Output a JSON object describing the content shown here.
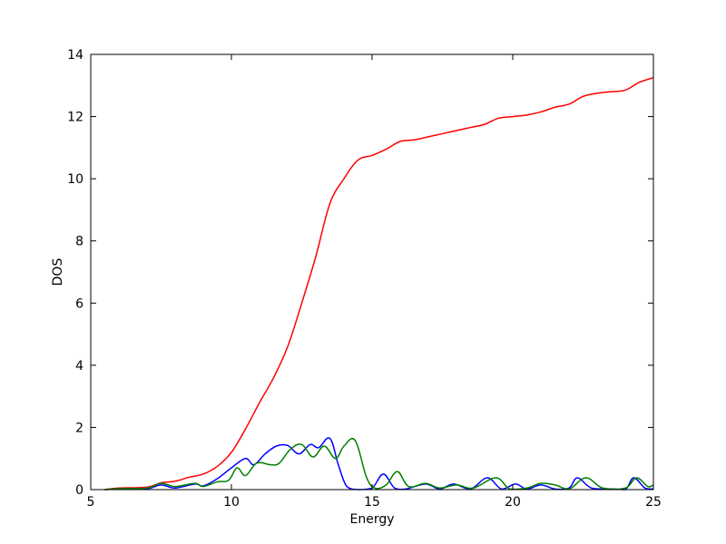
{
  "chart_data": {
    "type": "line",
    "title": "",
    "xlabel": "Energy",
    "ylabel": "DOS",
    "xlim": [
      5,
      25
    ],
    "ylim": [
      0,
      14
    ],
    "xticks": [
      5,
      10,
      15,
      20,
      25
    ],
    "yticks": [
      0,
      2,
      4,
      6,
      8,
      10,
      12,
      14
    ],
    "xtick_labels": [
      "5",
      "10",
      "15",
      "20",
      "25"
    ],
    "ytick_labels": [
      "0",
      "2",
      "4",
      "6",
      "8",
      "10",
      "12",
      "14"
    ],
    "grid": false,
    "legend": "none",
    "series": [
      {
        "name": "total",
        "color": "#ff0000",
        "x": [
          5.5,
          6.0,
          7.0,
          7.5,
          8.0,
          8.5,
          9.0,
          9.5,
          10.0,
          10.5,
          11.0,
          11.5,
          12.0,
          12.5,
          13.0,
          13.5,
          14.0,
          14.5,
          15.0,
          15.5,
          16.0,
          16.5,
          17.0,
          17.5,
          18.0,
          18.5,
          19.0,
          19.5,
          20.0,
          20.5,
          21.0,
          21.5,
          22.0,
          22.5,
          23.0,
          23.5,
          24.0,
          24.5,
          25.0
        ],
        "values": [
          0.0,
          0.05,
          0.08,
          0.22,
          0.27,
          0.4,
          0.5,
          0.75,
          1.2,
          1.95,
          2.8,
          3.6,
          4.6,
          6.0,
          7.5,
          9.2,
          10.0,
          10.6,
          10.75,
          10.95,
          11.2,
          11.25,
          11.35,
          11.45,
          11.55,
          11.65,
          11.75,
          11.95,
          12.0,
          12.05,
          12.15,
          12.3,
          12.4,
          12.65,
          12.75,
          12.8,
          12.85,
          13.1,
          13.25
        ]
      },
      {
        "name": "partial-1",
        "color": "#0000ff",
        "x": [
          5.5,
          6.0,
          7.0,
          7.5,
          8.0,
          8.7,
          9.0,
          9.5,
          10.0,
          10.5,
          10.8,
          11.2,
          11.6,
          12.0,
          12.4,
          12.8,
          13.1,
          13.5,
          13.8,
          14.1,
          14.5,
          15.0,
          15.4,
          15.8,
          16.2,
          16.9,
          17.4,
          17.9,
          18.5,
          19.1,
          19.6,
          20.1,
          20.5,
          21.0,
          21.5,
          22.0,
          22.3,
          22.8,
          23.5,
          24.0,
          24.3,
          24.7,
          25.0
        ],
        "values": [
          0.0,
          0.02,
          0.03,
          0.15,
          0.05,
          0.18,
          0.12,
          0.35,
          0.7,
          1.0,
          0.8,
          1.15,
          1.4,
          1.42,
          1.15,
          1.45,
          1.35,
          1.65,
          0.8,
          0.1,
          0.0,
          0.05,
          0.5,
          0.05,
          0.02,
          0.18,
          0.02,
          0.18,
          0.02,
          0.38,
          0.02,
          0.18,
          0.02,
          0.15,
          0.02,
          0.05,
          0.38,
          0.05,
          0.02,
          0.0,
          0.38,
          0.05,
          0.02
        ]
      },
      {
        "name": "partial-2",
        "color": "#008000",
        "x": [
          5.5,
          6.0,
          7.0,
          7.5,
          8.0,
          8.7,
          9.0,
          9.5,
          9.9,
          10.2,
          10.5,
          10.9,
          11.4,
          11.7,
          12.1,
          12.5,
          12.9,
          13.3,
          13.7,
          14.0,
          14.4,
          14.8,
          15.1,
          15.5,
          15.9,
          16.3,
          16.9,
          17.4,
          18.0,
          18.6,
          19.4,
          19.9,
          20.5,
          21.0,
          21.5,
          22.0,
          22.6,
          23.2,
          24.0,
          24.4,
          24.8,
          25.0
        ],
        "values": [
          0.0,
          0.03,
          0.05,
          0.2,
          0.1,
          0.2,
          0.1,
          0.25,
          0.3,
          0.7,
          0.45,
          0.85,
          0.8,
          0.85,
          1.3,
          1.45,
          1.05,
          1.4,
          1.0,
          1.4,
          1.58,
          0.4,
          0.05,
          0.15,
          0.58,
          0.1,
          0.2,
          0.05,
          0.15,
          0.05,
          0.38,
          0.02,
          0.05,
          0.2,
          0.15,
          0.02,
          0.38,
          0.05,
          0.05,
          0.38,
          0.1,
          0.15
        ]
      }
    ]
  }
}
